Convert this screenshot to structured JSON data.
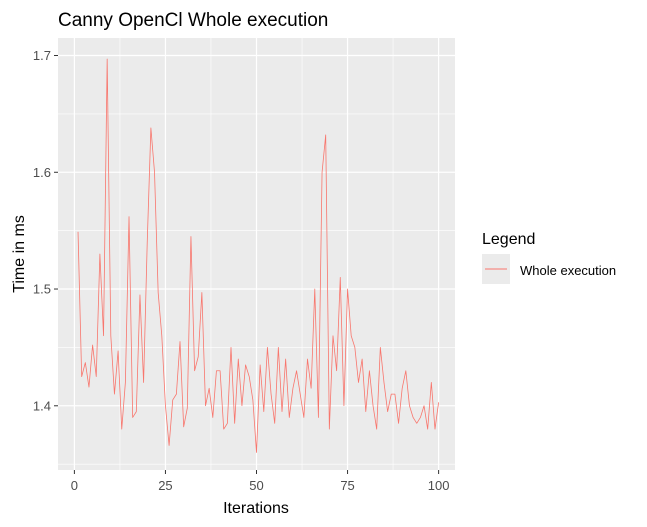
{
  "chart_data": {
    "type": "line",
    "title": "Canny OpenCl Whole execution",
    "xlabel": "Iterations",
    "ylabel": "Time in ms",
    "xlim": [
      -4.5,
      104.5
    ],
    "ylim": [
      1.345,
      1.715
    ],
    "x_ticks": [
      0,
      25,
      50,
      75,
      100
    ],
    "x_tick_labels": [
      "0",
      "25",
      "50",
      "75",
      "100"
    ],
    "x_minor_ticks": [
      12.5,
      37.5,
      62.5,
      87.5
    ],
    "y_ticks": [
      1.4,
      1.5,
      1.6,
      1.7
    ],
    "y_tick_labels": [
      "1.4",
      "1.5",
      "1.6",
      "1.7"
    ],
    "y_minor_ticks": [
      1.35,
      1.45,
      1.55,
      1.65
    ],
    "grid": true,
    "panel_color": "#ebebeb",
    "legend": {
      "title": "Legend",
      "position": "right",
      "entries": [
        {
          "label": "Whole execution",
          "color": "#f8766d"
        }
      ]
    },
    "series": [
      {
        "name": "Whole execution",
        "color": "#f8766d",
        "x": [
          1,
          2,
          3,
          4,
          5,
          6,
          7,
          8,
          9,
          10,
          11,
          12,
          13,
          14,
          15,
          16,
          17,
          18,
          19,
          20,
          21,
          22,
          23,
          24,
          25,
          26,
          27,
          28,
          29,
          30,
          31,
          32,
          33,
          34,
          35,
          36,
          37,
          38,
          39,
          40,
          41,
          42,
          43,
          44,
          45,
          46,
          47,
          48,
          49,
          50,
          51,
          52,
          53,
          54,
          55,
          56,
          57,
          58,
          59,
          60,
          61,
          62,
          63,
          64,
          65,
          66,
          67,
          68,
          69,
          70,
          71,
          72,
          73,
          74,
          75,
          76,
          77,
          78,
          79,
          80,
          81,
          82,
          83,
          84,
          85,
          86,
          87,
          88,
          89,
          90,
          91,
          92,
          93,
          94,
          95,
          96,
          97,
          98,
          99,
          100
        ],
        "y": [
          1.549,
          1.425,
          1.437,
          1.416,
          1.452,
          1.425,
          1.53,
          1.46,
          1.697,
          1.46,
          1.41,
          1.447,
          1.38,
          1.42,
          1.562,
          1.39,
          1.395,
          1.495,
          1.42,
          1.54,
          1.638,
          1.6,
          1.497,
          1.46,
          1.4,
          1.366,
          1.405,
          1.41,
          1.455,
          1.382,
          1.398,
          1.545,
          1.43,
          1.442,
          1.497,
          1.4,
          1.415,
          1.39,
          1.43,
          1.43,
          1.38,
          1.385,
          1.45,
          1.385,
          1.44,
          1.4,
          1.435,
          1.425,
          1.405,
          1.36,
          1.435,
          1.395,
          1.45,
          1.41,
          1.385,
          1.45,
          1.395,
          1.44,
          1.39,
          1.415,
          1.43,
          1.41,
          1.39,
          1.44,
          1.415,
          1.5,
          1.39,
          1.6,
          1.632,
          1.38,
          1.46,
          1.43,
          1.51,
          1.4,
          1.5,
          1.46,
          1.45,
          1.42,
          1.44,
          1.395,
          1.43,
          1.4,
          1.38,
          1.45,
          1.42,
          1.395,
          1.41,
          1.41,
          1.385,
          1.415,
          1.43,
          1.4,
          1.39,
          1.385,
          1.39,
          1.4,
          1.38,
          1.42,
          1.38,
          1.403
        ]
      }
    ]
  }
}
